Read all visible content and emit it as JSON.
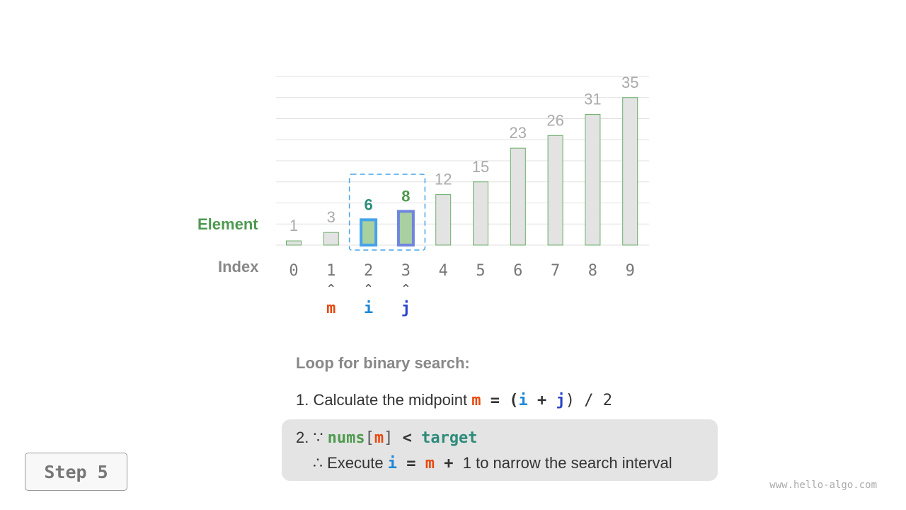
{
  "chart_data": {
    "type": "bar",
    "categories": [
      "0",
      "1",
      "2",
      "3",
      "4",
      "5",
      "6",
      "7",
      "8",
      "9"
    ],
    "values": [
      1,
      3,
      6,
      8,
      12,
      15,
      23,
      26,
      31,
      35
    ],
    "ylim": [
      0,
      40
    ],
    "grid": true,
    "highlighted_indices": [
      2,
      3
    ],
    "xlabel": "Index",
    "ylabel": "Element"
  },
  "pointers": [
    {
      "name": "m",
      "index": 1,
      "color": "#e8490f"
    },
    {
      "name": "i",
      "index": 2,
      "color": "#1e88d8"
    },
    {
      "name": "j",
      "index": 3,
      "color": "#2b45c9"
    }
  ],
  "colors": {
    "bar_fill": "#e3e3e3",
    "bar_stroke": "#6aae6a",
    "highlight_fill": "#a8d0a0",
    "i_border": "#45a3e8",
    "j_border": "#6f85de",
    "value_i": "#2e8b7a",
    "value_j": "#4f9a4f",
    "label_element": "#4e9a50"
  },
  "text": {
    "heading": "Loop for binary search:",
    "line1_prefix": "1. Calculate the midpoint",
    "line1_m": "m",
    "line1_eq": " = (",
    "line1_i": "i",
    "line1_plus": " + ",
    "line1_j": "j",
    "line1_rest": ") / 2",
    "line2_prefix": "2. ∵",
    "line2_nums": "nums",
    "line2_lb": "[",
    "line2_m": "m",
    "line2_rb": "]",
    "line2_lt": " < ",
    "line2_target": "target",
    "line3_prefix": "∴ Execute",
    "line3_i": "i",
    "line3_eq": " = ",
    "line3_m": "m",
    "line3_plus": " + ",
    "line3_rest": "1 to narrow the search interval"
  },
  "step_label": "Step 5",
  "watermark": "www.hello-algo.com"
}
